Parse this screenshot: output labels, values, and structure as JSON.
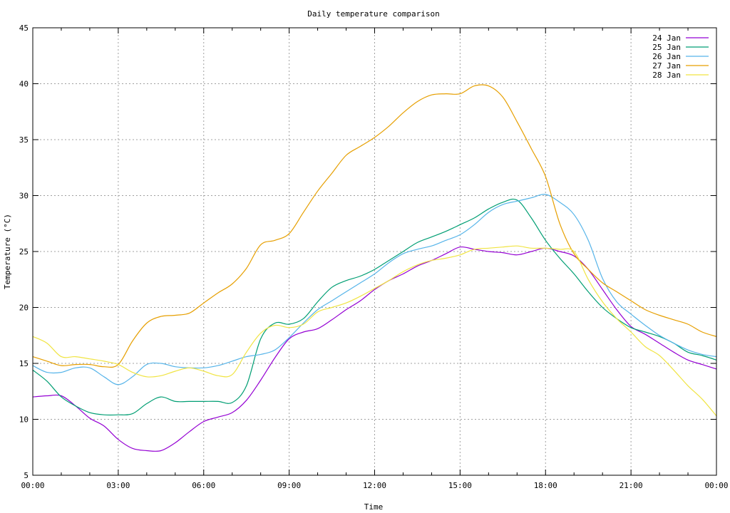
{
  "chart_data": {
    "type": "line",
    "title": "Daily temperature comparison",
    "xlabel": "Time",
    "ylabel": "Temperature (°C)",
    "xlim": [
      "00:00",
      "00:00"
    ],
    "ylim": [
      5,
      45
    ],
    "yticks": [
      5,
      10,
      15,
      20,
      25,
      30,
      35,
      40,
      45
    ],
    "xticks": [
      "00:00",
      "03:00",
      "06:00",
      "09:00",
      "12:00",
      "15:00",
      "18:00",
      "21:00",
      "00:00"
    ],
    "x_hours": [
      0,
      0.5,
      1,
      1.5,
      2,
      2.5,
      3,
      3.5,
      4,
      4.5,
      5,
      5.5,
      6,
      6.5,
      7,
      7.5,
      8,
      8.5,
      9,
      9.5,
      10,
      10.5,
      11,
      11.5,
      12,
      12.5,
      13,
      13.5,
      14,
      14.5,
      15,
      15.5,
      16,
      16.5,
      17,
      17.5,
      18,
      18.5,
      19,
      19.5,
      20,
      20.5,
      21,
      21.5,
      22,
      22.5,
      23,
      23.5,
      24
    ],
    "grid": true,
    "legend_position": "top-right",
    "series": [
      {
        "name": "24 Jan",
        "color": "#9400d3",
        "values": [
          12.0,
          12.1,
          12.1,
          11.2,
          10.1,
          9.4,
          8.2,
          7.4,
          7.2,
          7.2,
          7.9,
          8.9,
          9.8,
          10.2,
          10.6,
          11.7,
          13.5,
          15.5,
          17.2,
          17.8,
          18.1,
          18.9,
          19.8,
          20.6,
          21.6,
          22.4,
          23.0,
          23.7,
          24.2,
          24.8,
          25.4,
          25.2,
          25.0,
          24.9,
          24.7,
          25.0,
          25.3,
          25.0,
          24.6,
          23.4,
          21.6,
          19.8,
          18.3,
          17.6,
          16.8,
          16.0,
          15.3,
          14.9,
          14.5
        ]
      },
      {
        "name": "25 Jan",
        "color": "#009e73",
        "values": [
          14.4,
          13.4,
          12.0,
          11.2,
          10.6,
          10.4,
          10.4,
          10.5,
          11.4,
          12.0,
          11.6,
          11.6,
          11.6,
          11.6,
          11.5,
          13.0,
          17.2,
          18.6,
          18.5,
          19.0,
          20.5,
          21.8,
          22.4,
          22.8,
          23.4,
          24.2,
          25.0,
          25.8,
          26.3,
          26.8,
          27.4,
          28.0,
          28.8,
          29.4,
          29.6,
          28.0,
          26.0,
          24.4,
          23.0,
          21.4,
          20.0,
          19.0,
          18.2,
          17.8,
          17.4,
          16.8,
          16.0,
          15.7,
          15.3
        ]
      },
      {
        "name": "26 Jan",
        "color": "#56b4e9",
        "values": [
          14.8,
          14.2,
          14.2,
          14.6,
          14.6,
          13.8,
          13.1,
          13.8,
          14.9,
          15.0,
          14.7,
          14.6,
          14.6,
          14.8,
          15.2,
          15.6,
          15.8,
          16.2,
          17.3,
          18.6,
          19.8,
          20.6,
          21.4,
          22.2,
          23.0,
          24.0,
          24.8,
          25.2,
          25.5,
          26.0,
          26.5,
          27.4,
          28.5,
          29.2,
          29.5,
          29.8,
          30.1,
          29.4,
          28.3,
          26.0,
          22.6,
          20.5,
          19.4,
          18.4,
          17.5,
          16.8,
          16.2,
          15.8,
          15.6
        ]
      },
      {
        "name": "27 Jan",
        "color": "#e69f00",
        "values": [
          15.6,
          15.2,
          14.8,
          14.9,
          14.9,
          14.7,
          14.9,
          17.0,
          18.6,
          19.2,
          19.3,
          19.5,
          20.4,
          21.3,
          22.1,
          23.5,
          25.6,
          26.0,
          26.6,
          28.5,
          30.4,
          32.0,
          33.6,
          34.4,
          35.2,
          36.2,
          37.4,
          38.4,
          39.0,
          39.1,
          39.1,
          39.8,
          39.8,
          38.8,
          36.6,
          34.2,
          31.7,
          27.5,
          24.8,
          23.4,
          22.2,
          21.4,
          20.6,
          19.8,
          19.3,
          18.9,
          18.5,
          17.8,
          17.4
        ]
      },
      {
        "name": "28 Jan",
        "color": "#f0e442",
        "values": [
          17.4,
          16.8,
          15.6,
          15.6,
          15.4,
          15.2,
          14.9,
          14.2,
          13.8,
          13.9,
          14.3,
          14.6,
          14.3,
          13.9,
          14.0,
          16.0,
          17.7,
          18.4,
          18.2,
          18.5,
          19.6,
          20.0,
          20.4,
          21.0,
          21.7,
          22.4,
          23.2,
          23.8,
          24.2,
          24.4,
          24.7,
          25.2,
          25.3,
          25.4,
          25.5,
          25.3,
          25.3,
          25.2,
          25.0,
          22.5,
          20.5,
          19.0,
          17.8,
          16.5,
          15.7,
          14.4,
          13.0,
          11.8,
          10.3
        ]
      }
    ]
  }
}
